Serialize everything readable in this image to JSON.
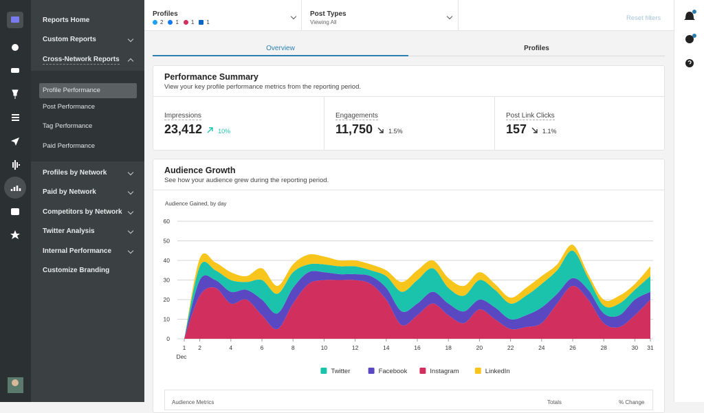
{
  "nav_top": [
    "Reports Home",
    "Custom Reports",
    "Cross-Network Reports"
  ],
  "nav_sub": [
    "Profile Performance",
    "Post Performance",
    "Tag Performance",
    "Paid Performance"
  ],
  "nav_bottom": [
    "Profiles by Network",
    "Paid by Network",
    "Competitors by Network",
    "Twitter Analysis",
    "Internal Performance",
    "Customize Branding"
  ],
  "filters": {
    "profiles_label": "Profiles",
    "profile_counts": [
      2,
      1,
      1,
      1
    ],
    "post_types_label": "Post Types",
    "post_types_value": "Viewing All",
    "reset": "Reset filters"
  },
  "tabs": [
    "Overview",
    "Profiles"
  ],
  "summary": {
    "title": "Performance Summary",
    "subtitle": "View your key profile performance metrics from the reporting period.",
    "metrics": [
      {
        "label": "Impressions",
        "value": "23,412",
        "change": "10%"
      },
      {
        "label": "Engagements",
        "value": "11,750",
        "change": "1.5%"
      },
      {
        "label": "Post Link Clicks",
        "value": "157",
        "change": "1.1%"
      }
    ]
  },
  "audience_growth": {
    "title": "Audience Growth",
    "subtitle": "See how your audience grew during the reporting period."
  },
  "chart_data": {
    "type": "area",
    "stacked": true,
    "y_label": "Audience Gained, by day",
    "x_month": "Dec",
    "x": [
      1,
      2,
      3,
      4,
      5,
      6,
      7,
      8,
      9,
      10,
      11,
      12,
      13,
      14,
      15,
      16,
      17,
      18,
      19,
      20,
      21,
      22,
      23,
      24,
      25,
      26,
      27,
      28,
      29,
      30,
      31
    ],
    "xlim": [
      1,
      31
    ],
    "xticks": [
      1,
      2,
      4,
      6,
      8,
      10,
      12,
      14,
      16,
      18,
      20,
      22,
      24,
      26,
      28,
      30,
      31
    ],
    "ylim": [
      0,
      60
    ],
    "yticks": [
      0,
      10,
      20,
      30,
      40,
      50,
      60
    ],
    "grid": true,
    "legend": "bottom",
    "series": [
      {
        "name": "Instagram",
        "color": "#d1305e",
        "values": [
          0,
          22,
          26,
          18,
          20,
          12,
          5,
          18,
          28,
          30,
          30,
          30,
          28,
          20,
          7,
          12,
          18,
          12,
          8,
          15,
          10,
          5,
          6,
          8,
          18,
          27,
          20,
          8,
          6,
          12,
          20
        ]
      },
      {
        "name": "Facebook",
        "color": "#5a48c2",
        "values": [
          0,
          8,
          4,
          6,
          5,
          8,
          8,
          8,
          6,
          4,
          3,
          3,
          4,
          6,
          7,
          6,
          6,
          6,
          6,
          5,
          6,
          5,
          6,
          8,
          5,
          4,
          5,
          5,
          6,
          8,
          4
        ]
      },
      {
        "name": "Twitter",
        "color": "#1cc3ac",
        "values": [
          0,
          7,
          5,
          6,
          4,
          10,
          10,
          8,
          4,
          4,
          4,
          4,
          3,
          6,
          10,
          12,
          12,
          8,
          8,
          10,
          9,
          8,
          10,
          12,
          12,
          14,
          6,
          4,
          6,
          5,
          8
        ]
      },
      {
        "name": "LinkedIn",
        "color": "#f8c51c",
        "values": [
          0,
          4,
          4,
          4,
          3,
          6,
          4,
          4,
          5,
          4,
          3,
          3,
          3,
          3,
          5,
          5,
          4,
          5,
          5,
          4,
          3,
          3,
          4,
          4,
          3,
          3,
          2,
          3,
          4,
          3,
          5
        ]
      }
    ]
  },
  "table": {
    "headers": [
      "Audience Metrics",
      "Totals",
      "% Change"
    ]
  }
}
